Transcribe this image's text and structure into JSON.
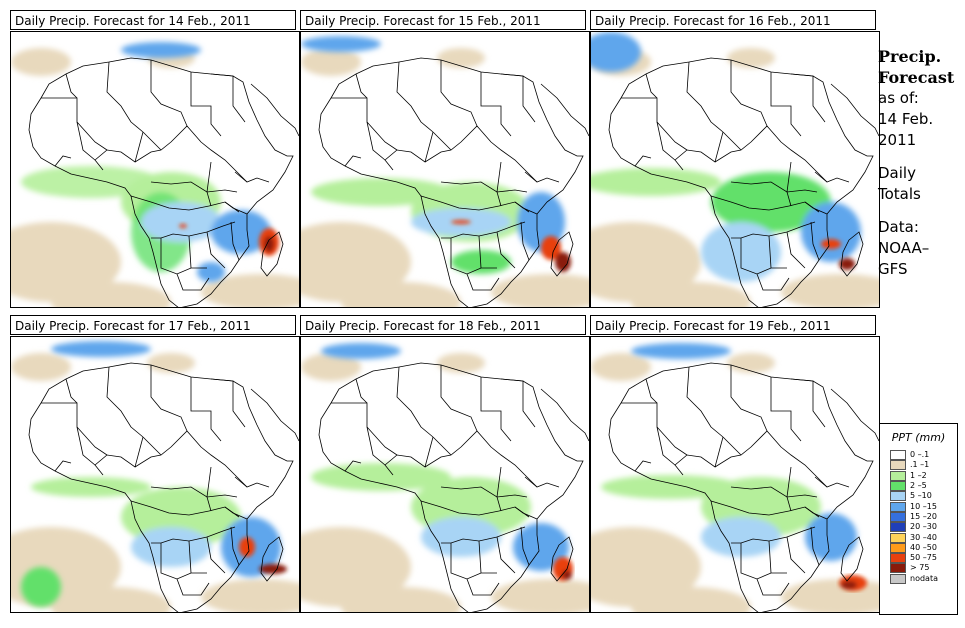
{
  "panels": [
    {
      "title": "Daily Precip. Forecast for  14 Feb., 2011"
    },
    {
      "title": "Daily Precip. Forecast for  15 Feb., 2011"
    },
    {
      "title": "Daily Precip. Forecast for  16 Feb., 2011"
    },
    {
      "title": "Daily Precip. Forecast for  17 Feb., 2011"
    },
    {
      "title": "Daily Precip. Forecast for  18 Feb., 2011"
    },
    {
      "title": "Daily Precip. Forecast for  19 Feb., 2011"
    }
  ],
  "sidebar": {
    "heading_line1": "Precip.",
    "heading_line2": "Forecast",
    "asof_line1": "as of:",
    "asof_line2": "14 Feb.",
    "asof_line3": "2011",
    "totals_line1": "Daily",
    "totals_line2": "Totals",
    "source_line1": "Data:",
    "source_line2": "NOAA–",
    "source_line3": "GFS"
  },
  "legend": {
    "title": "PPT (mm)",
    "entries": [
      {
        "label": "0 –.1",
        "color": "#ffffff"
      },
      {
        "label": ".1 –1",
        "color": "#e8d9bd"
      },
      {
        "label": "1 –2",
        "color": "#b5ef9b"
      },
      {
        "label": "2 –5",
        "color": "#62e06a"
      },
      {
        "label": "5 –10",
        "color": "#a8d4f5"
      },
      {
        "label": "10 –15",
        "color": "#5fa6ec"
      },
      {
        "label": "15 –20",
        "color": "#3570de"
      },
      {
        "label": "20 –30",
        "color": "#1f3fb8"
      },
      {
        "label": "30 –40",
        "color": "#ffd35a"
      },
      {
        "label": "40 –50",
        "color": "#ff9b1a"
      },
      {
        "label": "50 –75",
        "color": "#e8400e"
      },
      {
        "label": "> 75",
        "color": "#8a1a0a"
      },
      {
        "label": "nodata",
        "color": "#c8c8c8"
      }
    ]
  }
}
